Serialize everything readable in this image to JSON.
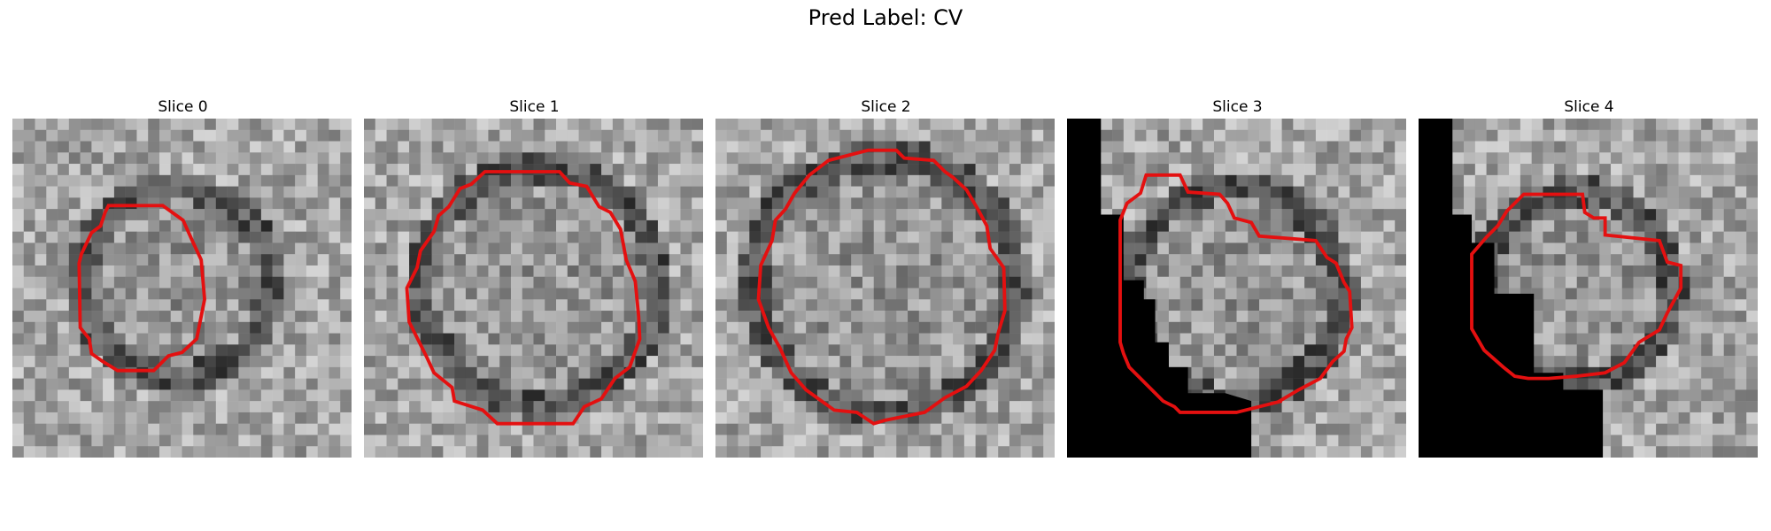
{
  "figure": {
    "title": "Pred Label: CV"
  },
  "panels": [
    {
      "title": "Slice 0",
      "image": "grayscale-slice-texture",
      "contour_color": "#e41010"
    },
    {
      "title": "Slice 1",
      "image": "grayscale-slice-texture",
      "contour_color": "#e41010"
    },
    {
      "title": "Slice 2",
      "image": "grayscale-slice-texture",
      "contour_color": "#e41010"
    },
    {
      "title": "Slice 3",
      "image": "grayscale-slice-texture",
      "contour_color": "#e41010"
    },
    {
      "title": "Slice 4",
      "image": "grayscale-slice-texture",
      "contour_color": "#e41010"
    }
  ],
  "colors": {
    "contour": "#e41010",
    "mask": "#000000"
  }
}
